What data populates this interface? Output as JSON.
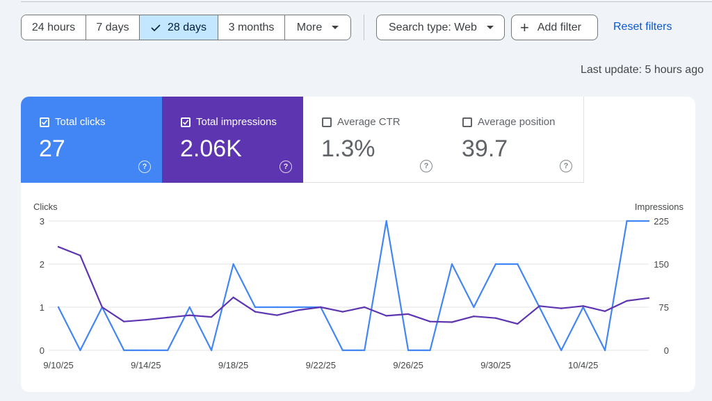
{
  "date_filters": {
    "options": [
      "24 hours",
      "7 days",
      "28 days",
      "3 months",
      "More"
    ],
    "selected": "28 days"
  },
  "filters": {
    "search_type": "Search type: Web",
    "add_filter": "Add filter",
    "reset": "Reset filters"
  },
  "last_update": "Last update: 5 hours ago",
  "metrics": {
    "clicks": {
      "label": "Total clicks",
      "value": "27",
      "checked": true,
      "color": "#4285f4"
    },
    "impressions": {
      "label": "Total impressions",
      "value": "2.06K",
      "checked": true,
      "color": "#5e35b1"
    },
    "ctr": {
      "label": "Average CTR",
      "value": "1.3%",
      "checked": false
    },
    "position": {
      "label": "Average position",
      "value": "39.7",
      "checked": false
    }
  },
  "chart_data": {
    "type": "line",
    "x": [
      "9/10/25",
      "9/11/25",
      "9/12/25",
      "9/13/25",
      "9/14/25",
      "9/15/25",
      "9/16/25",
      "9/17/25",
      "9/18/25",
      "9/19/25",
      "9/20/25",
      "9/21/25",
      "9/22/25",
      "9/23/25",
      "9/24/25",
      "9/25/25",
      "9/26/25",
      "9/27/25",
      "9/28/25",
      "9/29/25",
      "9/30/25",
      "10/1/25",
      "10/2/25",
      "10/3/25",
      "10/4/25",
      "10/5/25",
      "10/6/25",
      "10/7/25"
    ],
    "x_tick_labels": [
      "9/10/25",
      "9/14/25",
      "9/18/25",
      "9/22/25",
      "9/26/25",
      "9/30/25",
      "10/4/25"
    ],
    "ylabel_left": "Clicks",
    "ylabel_right": "Impressions",
    "ylim_left": [
      0,
      3
    ],
    "ylim_right": [
      0,
      225
    ],
    "yticks_left": [
      "0",
      "1",
      "2",
      "3"
    ],
    "yticks_right": [
      "0",
      "75",
      "150",
      "225"
    ],
    "grid": true,
    "series": [
      {
        "name": "Clicks",
        "axis": "left",
        "color": "#4285f4",
        "values": [
          1,
          0,
          1,
          0,
          0,
          0,
          1,
          0,
          2,
          1,
          1,
          1,
          1,
          0,
          0,
          3,
          0,
          0,
          2,
          1,
          2,
          2,
          1,
          0,
          1,
          0,
          3,
          3
        ]
      },
      {
        "name": "Impressions",
        "axis": "right",
        "color": "#5e35b1",
        "values": [
          180,
          165,
          75,
          50,
          53,
          57,
          61,
          58,
          92,
          67,
          61,
          70,
          75,
          67,
          75,
          60,
          63,
          50,
          49,
          59,
          56,
          46,
          77,
          73,
          77,
          68,
          86,
          91
        ]
      }
    ]
  }
}
